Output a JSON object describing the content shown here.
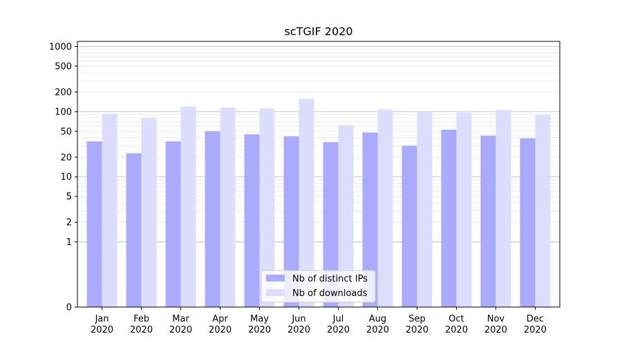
{
  "chart_data": {
    "type": "bar",
    "title": "scTGIF 2020",
    "xlabel": "",
    "ylabel": "",
    "y_scale": "symlog",
    "ylim": [
      0,
      1200
    ],
    "y_ticks": [
      0,
      1,
      2,
      5,
      10,
      20,
      50,
      100,
      200,
      500,
      1000
    ],
    "y_tick_labels": [
      "0",
      "1",
      "2",
      "5",
      "10",
      "20",
      "50",
      "100",
      "200",
      "500",
      "1000"
    ],
    "categories": [
      "Jan\n2020",
      "Feb\n2020",
      "Mar\n2020",
      "Apr\n2020",
      "May\n2020",
      "Jun\n2020",
      "Jul\n2020",
      "Aug\n2020",
      "Sep\n2020",
      "Oct\n2020",
      "Nov\n2020",
      "Dec\n2020"
    ],
    "category_lines": [
      [
        "Jan",
        "2020"
      ],
      [
        "Feb",
        "2020"
      ],
      [
        "Mar",
        "2020"
      ],
      [
        "Apr",
        "2020"
      ],
      [
        "May",
        "2020"
      ],
      [
        "Jun",
        "2020"
      ],
      [
        "Jul",
        "2020"
      ],
      [
        "Aug",
        "2020"
      ],
      [
        "Sep",
        "2020"
      ],
      [
        "Oct",
        "2020"
      ],
      [
        "Nov",
        "2020"
      ],
      [
        "Dec",
        "2020"
      ]
    ],
    "series": [
      {
        "name": "Nb of distinct IPs",
        "color": "#aaaaff",
        "values": [
          35,
          23,
          35,
          50,
          45,
          42,
          34,
          48,
          30,
          53,
          43,
          39
        ]
      },
      {
        "name": "Nb of downloads",
        "color": "#ddddff",
        "values": [
          93,
          80,
          120,
          115,
          112,
          157,
          62,
          108,
          100,
          97,
          106,
          91
        ]
      }
    ],
    "grid": true,
    "legend_position": "bottom-center"
  }
}
